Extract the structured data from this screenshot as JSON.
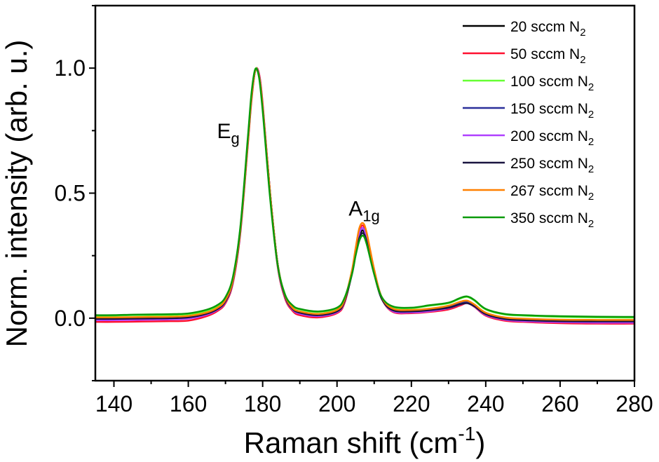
{
  "chart_data": {
    "type": "line",
    "xlabel": "Raman shift (cm",
    "xlabel_sup": "-1",
    "xlabel_end": ")",
    "ylabel": "Norm. intensity (arb. u.)",
    "xlim": [
      135,
      280
    ],
    "ylim": [
      -0.25,
      1.25
    ],
    "x_ticks": [
      "140",
      "160",
      "180",
      "200",
      "220",
      "240",
      "260",
      "280"
    ],
    "y_ticks": [
      "0.0",
      "0.5",
      "1.0"
    ],
    "grid": false,
    "legend_position": "top-right",
    "annotations": [
      {
        "text": "E",
        "sub": "g",
        "x": 173,
        "y": 0.72
      },
      {
        "text": "A",
        "sub": "1g",
        "x": 206.5,
        "y": 0.41
      }
    ],
    "x": [
      135,
      140,
      145,
      150,
      155,
      160,
      165,
      168,
      170,
      172,
      174,
      176,
      177,
      178,
      179,
      180,
      182,
      184,
      186,
      188,
      190,
      195,
      200,
      202,
      204,
      205,
      206,
      207,
      208,
      210,
      212,
      215,
      220,
      225,
      230,
      233,
      235,
      237,
      240,
      245,
      250,
      260,
      270,
      280
    ],
    "series": [
      {
        "name": "20 sccm N",
        "sub": "2",
        "color": "#000000",
        "values": [
          0.0,
          0.0,
          0.0,
          0.002,
          0.003,
          0.006,
          0.02,
          0.04,
          0.07,
          0.15,
          0.35,
          0.7,
          0.88,
          0.99,
          0.97,
          0.85,
          0.5,
          0.22,
          0.09,
          0.04,
          0.025,
          0.015,
          0.03,
          0.07,
          0.18,
          0.26,
          0.33,
          0.35,
          0.31,
          0.18,
          0.08,
          0.035,
          0.03,
          0.035,
          0.045,
          0.06,
          0.065,
          0.05,
          0.02,
          0.0,
          -0.005,
          -0.01,
          -0.01,
          -0.01
        ]
      },
      {
        "name": "50 sccm N",
        "sub": "2",
        "color": "#ff1030",
        "values": [
          -0.015,
          -0.015,
          -0.014,
          -0.013,
          -0.012,
          -0.01,
          0.008,
          0.03,
          0.06,
          0.14,
          0.34,
          0.69,
          0.87,
          0.99,
          0.98,
          0.86,
          0.5,
          0.21,
          0.08,
          0.03,
          0.012,
          0.003,
          0.02,
          0.06,
          0.18,
          0.27,
          0.35,
          0.37,
          0.33,
          0.19,
          0.08,
          0.025,
          0.02,
          0.025,
          0.035,
          0.05,
          0.06,
          0.045,
          0.01,
          -0.01,
          -0.015,
          -0.02,
          -0.022,
          -0.022
        ]
      },
      {
        "name": "100 sccm N",
        "sub": "2",
        "color": "#66ff33",
        "values": [
          0.01,
          0.01,
          0.012,
          0.012,
          0.013,
          0.016,
          0.03,
          0.05,
          0.08,
          0.16,
          0.36,
          0.71,
          0.89,
          0.995,
          0.97,
          0.84,
          0.49,
          0.22,
          0.095,
          0.05,
          0.035,
          0.025,
          0.04,
          0.08,
          0.18,
          0.26,
          0.32,
          0.34,
          0.3,
          0.18,
          0.085,
          0.045,
          0.04,
          0.05,
          0.06,
          0.078,
          0.085,
          0.07,
          0.035,
          0.015,
          0.01,
          0.005,
          0.003,
          0.002
        ]
      },
      {
        "name": "150 sccm N",
        "sub": "2",
        "color": "#2a2f9a",
        "values": [
          0.0,
          0.0,
          0.001,
          0.002,
          0.003,
          0.006,
          0.021,
          0.042,
          0.072,
          0.15,
          0.35,
          0.7,
          0.88,
          0.99,
          0.97,
          0.85,
          0.5,
          0.22,
          0.09,
          0.04,
          0.024,
          0.014,
          0.03,
          0.07,
          0.18,
          0.265,
          0.34,
          0.36,
          0.32,
          0.185,
          0.08,
          0.033,
          0.028,
          0.034,
          0.045,
          0.06,
          0.065,
          0.05,
          0.018,
          -0.002,
          -0.006,
          -0.01,
          -0.012,
          -0.012
        ]
      },
      {
        "name": "200 sccm N",
        "sub": "2",
        "color": "#b040ff",
        "values": [
          -0.008,
          -0.008,
          -0.007,
          -0.006,
          -0.005,
          -0.002,
          0.014,
          0.035,
          0.065,
          0.145,
          0.345,
          0.7,
          0.88,
          0.99,
          0.975,
          0.855,
          0.5,
          0.215,
          0.085,
          0.035,
          0.018,
          0.008,
          0.024,
          0.065,
          0.18,
          0.265,
          0.34,
          0.36,
          0.32,
          0.185,
          0.08,
          0.028,
          0.023,
          0.028,
          0.04,
          0.054,
          0.06,
          0.046,
          0.013,
          -0.006,
          -0.012,
          -0.016,
          -0.018,
          -0.018
        ]
      },
      {
        "name": "250 sccm N",
        "sub": "2",
        "color": "#1a1440",
        "values": [
          -0.003,
          -0.003,
          -0.002,
          -0.001,
          0.0,
          0.003,
          0.018,
          0.038,
          0.068,
          0.148,
          0.348,
          0.7,
          0.88,
          0.99,
          0.97,
          0.85,
          0.5,
          0.22,
          0.088,
          0.038,
          0.022,
          0.012,
          0.027,
          0.067,
          0.175,
          0.255,
          0.32,
          0.34,
          0.305,
          0.178,
          0.078,
          0.032,
          0.027,
          0.032,
          0.042,
          0.055,
          0.06,
          0.047,
          0.016,
          -0.003,
          -0.008,
          -0.012,
          -0.013,
          -0.013
        ]
      },
      {
        "name": "267 sccm N",
        "sub": "2",
        "color": "#ff8000",
        "values": [
          0.003,
          0.003,
          0.004,
          0.005,
          0.006,
          0.009,
          0.023,
          0.043,
          0.073,
          0.152,
          0.352,
          0.7,
          0.88,
          0.99,
          0.97,
          0.85,
          0.5,
          0.22,
          0.092,
          0.042,
          0.027,
          0.017,
          0.033,
          0.073,
          0.19,
          0.28,
          0.36,
          0.38,
          0.34,
          0.195,
          0.085,
          0.038,
          0.033,
          0.038,
          0.05,
          0.065,
          0.07,
          0.054,
          0.022,
          0.003,
          -0.002,
          -0.006,
          -0.007,
          -0.007
        ]
      },
      {
        "name": "350 sccm N",
        "sub": "2",
        "color": "#0a9a0a",
        "values": [
          0.012,
          0.012,
          0.014,
          0.015,
          0.016,
          0.019,
          0.034,
          0.054,
          0.084,
          0.165,
          0.365,
          0.72,
          0.9,
          0.995,
          0.965,
          0.83,
          0.48,
          0.215,
          0.095,
          0.052,
          0.037,
          0.027,
          0.042,
          0.08,
          0.175,
          0.25,
          0.31,
          0.33,
          0.295,
          0.175,
          0.085,
          0.047,
          0.042,
          0.052,
          0.062,
          0.08,
          0.087,
          0.072,
          0.037,
          0.017,
          0.012,
          0.008,
          0.006,
          0.005
        ]
      }
    ]
  }
}
